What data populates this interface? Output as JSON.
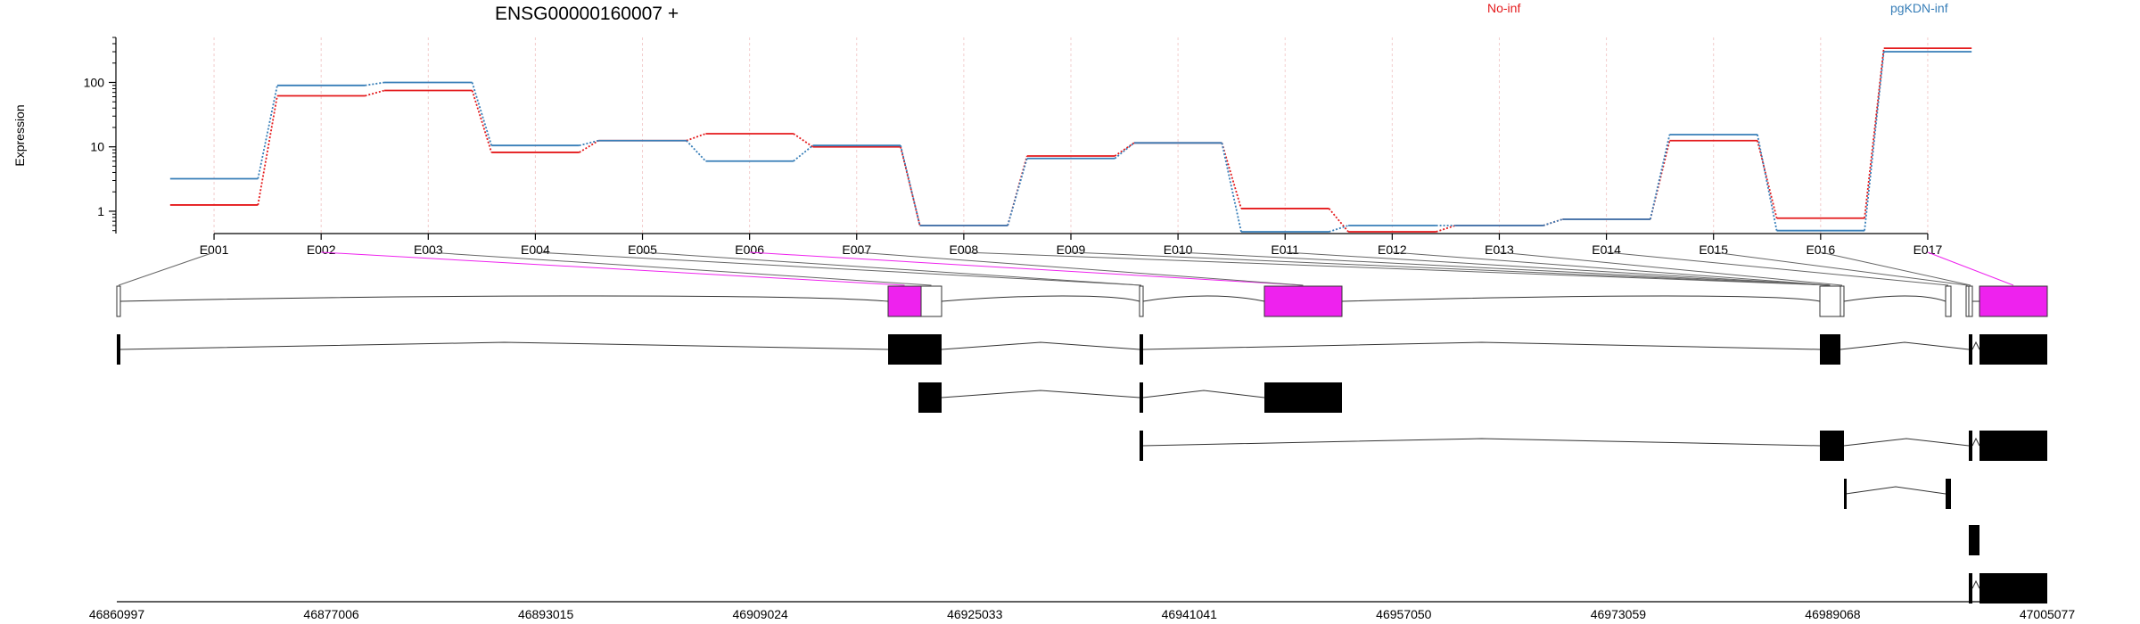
{
  "chart_data": {
    "type": "line",
    "title": "ENSG00000160007 +",
    "ylabel": "Expression",
    "xlabel": "",
    "yscale": "log",
    "ylim": [
      0.45,
      500
    ],
    "yticks": [
      1,
      10,
      100
    ],
    "ytick_labels": [
      "1",
      "10",
      "100"
    ],
    "grid_x": true,
    "legend_placement": "top",
    "categories": [
      "E001",
      "E002",
      "E003",
      "E004",
      "E005",
      "E006",
      "E007",
      "E008",
      "E009",
      "E010",
      "E011",
      "E012",
      "E013",
      "E014",
      "E015",
      "E016",
      "E017"
    ],
    "series": [
      {
        "name": "No-inf",
        "color": "#e41a1c",
        "values": [
          1.25,
          62,
          75,
          8.2,
          12.5,
          16,
          10,
          0.6,
          7.2,
          11.5,
          1.1,
          0.48,
          0.6,
          0.75,
          12.5,
          0.78,
          340
        ]
      },
      {
        "name": "pgKDN-inf",
        "color": "#377eb8",
        "values": [
          3.2,
          90,
          100,
          10.5,
          12.5,
          6,
          10.5,
          0.6,
          6.6,
          11.5,
          0.48,
          0.6,
          0.6,
          0.75,
          15.5,
          0.5,
          300
        ]
      }
    ],
    "genomic_axis": {
      "tick_labels": [
        "46860997",
        "46877006",
        "46893015",
        "46909024",
        "46925033",
        "46941041",
        "46957050",
        "46973059",
        "46989068",
        "47005077"
      ]
    },
    "highlight_color": "#ee22ee",
    "exon_links": [
      {
        "exon": "E001",
        "highlighted": false
      },
      {
        "exon": "E002",
        "highlighted": true
      },
      {
        "exon": "E003",
        "highlighted": false
      },
      {
        "exon": "E004",
        "highlighted": false
      },
      {
        "exon": "E005",
        "highlighted": false
      },
      {
        "exon": "E006",
        "highlighted": true
      },
      {
        "exon": "E007",
        "highlighted": false
      },
      {
        "exon": "E008",
        "highlighted": false
      },
      {
        "exon": "E009",
        "highlighted": false
      },
      {
        "exon": "E010",
        "highlighted": false
      },
      {
        "exon": "E011",
        "highlighted": false
      },
      {
        "exon": "E012",
        "highlighted": false
      },
      {
        "exon": "E013",
        "highlighted": false
      },
      {
        "exon": "E014",
        "highlighted": false
      },
      {
        "exon": "E015",
        "highlighted": false
      },
      {
        "exon": "E016",
        "highlighted": false
      },
      {
        "exon": "E017",
        "highlighted": true
      }
    ]
  }
}
